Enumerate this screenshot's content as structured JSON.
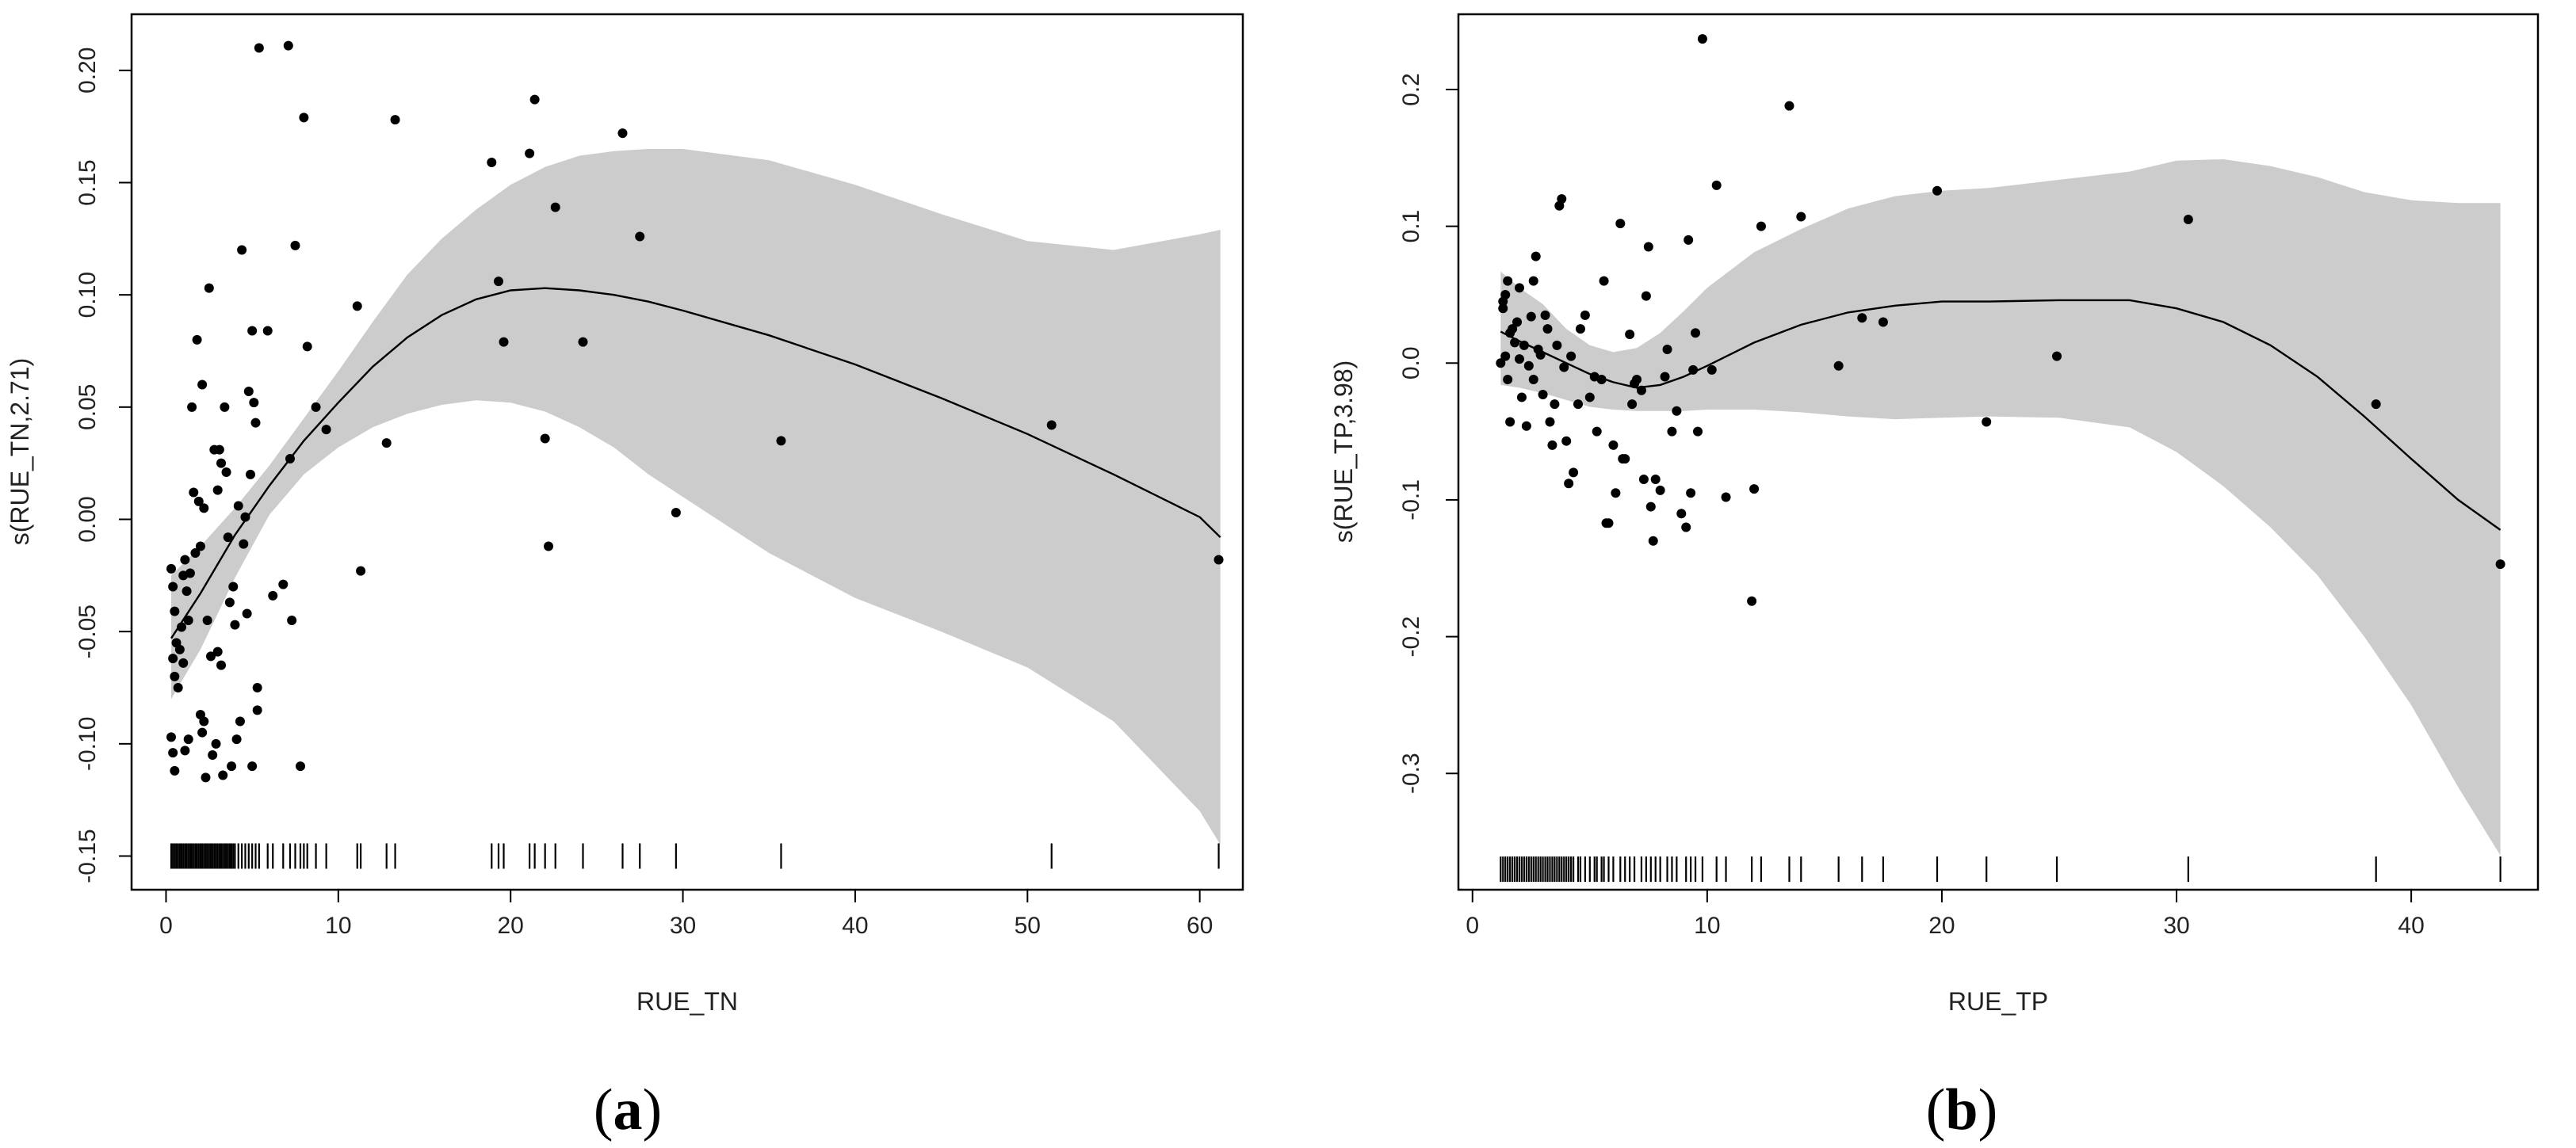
{
  "colors": {
    "band": "#cccccc",
    "line": "#000000",
    "points": "#000000",
    "frame": "#000000",
    "background": "#ffffff"
  },
  "chart_data": [
    {
      "panel_label": "(a)",
      "panel_letter": "a",
      "type": "scatter",
      "xlabel": "RUE_TN",
      "ylabel": "s(RUE_TN,2.71)",
      "xlim": [
        -2,
        62.5
      ],
      "ylim": [
        -0.165,
        0.225
      ],
      "xticks": [
        0,
        10,
        20,
        30,
        40,
        50,
        60
      ],
      "xtick_labels": [
        "0",
        "10",
        "20",
        "30",
        "40",
        "50",
        "60"
      ],
      "yticks": [
        -0.15,
        -0.1,
        -0.05,
        0.0,
        0.05,
        0.1,
        0.15,
        0.2
      ],
      "ytick_labels": [
        "-0.15",
        "-0.10",
        "-0.05",
        "0.00",
        "0.05",
        "0.10",
        "0.15",
        "0.20"
      ],
      "rug_y": -0.15,
      "smooth": {
        "x": [
          0.3,
          2,
          4,
          6,
          8,
          10,
          12,
          14,
          16,
          18,
          20,
          22,
          24,
          26,
          28,
          30,
          35,
          40,
          45,
          50,
          55,
          60,
          61.2
        ],
        "fit": [
          -0.053,
          -0.033,
          -0.007,
          0.015,
          0.035,
          0.052,
          0.068,
          0.081,
          0.091,
          0.098,
          0.102,
          0.103,
          0.102,
          0.1,
          0.097,
          0.093,
          0.082,
          0.069,
          0.054,
          0.038,
          0.02,
          0.001,
          -0.008
        ],
        "upper": [
          -0.025,
          -0.012,
          0.005,
          0.024,
          0.045,
          0.066,
          0.088,
          0.109,
          0.125,
          0.138,
          0.149,
          0.157,
          0.162,
          0.164,
          0.165,
          0.165,
          0.16,
          0.149,
          0.136,
          0.124,
          0.12,
          0.127,
          0.129
        ],
        "lower": [
          -0.08,
          -0.058,
          -0.026,
          0.002,
          0.02,
          0.032,
          0.041,
          0.047,
          0.051,
          0.053,
          0.052,
          0.048,
          0.041,
          0.032,
          0.02,
          0.01,
          -0.015,
          -0.035,
          -0.05,
          -0.066,
          -0.09,
          -0.13,
          -0.145
        ]
      },
      "points": [
        [
          0.3,
          -0.022
        ],
        [
          0.4,
          -0.03
        ],
        [
          0.5,
          -0.041
        ],
        [
          0.6,
          -0.055
        ],
        [
          0.4,
          -0.062
        ],
        [
          0.5,
          -0.07
        ],
        [
          0.7,
          -0.075
        ],
        [
          0.3,
          -0.097
        ],
        [
          0.4,
          -0.104
        ],
        [
          0.5,
          -0.112
        ],
        [
          0.8,
          -0.058
        ],
        [
          0.9,
          -0.048
        ],
        [
          1.0,
          -0.025
        ],
        [
          1.1,
          -0.018
        ],
        [
          1.2,
          -0.032
        ],
        [
          1.3,
          -0.045
        ],
        [
          1.0,
          -0.064
        ],
        [
          1.1,
          -0.103
        ],
        [
          1.3,
          -0.098
        ],
        [
          1.4,
          -0.024
        ],
        [
          1.5,
          0.05
        ],
        [
          1.6,
          0.012
        ],
        [
          1.7,
          -0.015
        ],
        [
          1.8,
          0.08
        ],
        [
          1.9,
          0.008
        ],
        [
          2.0,
          -0.012
        ],
        [
          2.0,
          -0.087
        ],
        [
          2.1,
          -0.095
        ],
        [
          2.1,
          0.06
        ],
        [
          2.2,
          0.005
        ],
        [
          2.2,
          -0.09
        ],
        [
          2.3,
          -0.115
        ],
        [
          2.4,
          -0.045
        ],
        [
          2.5,
          0.103
        ],
        [
          2.6,
          -0.061
        ],
        [
          2.7,
          -0.105
        ],
        [
          2.8,
          0.031
        ],
        [
          2.9,
          -0.1
        ],
        [
          3.0,
          0.013
        ],
        [
          3.0,
          -0.059
        ],
        [
          3.1,
          0.031
        ],
        [
          3.2,
          0.025
        ],
        [
          3.2,
          -0.065
        ],
        [
          3.3,
          -0.114
        ],
        [
          3.4,
          0.05
        ],
        [
          3.5,
          0.021
        ],
        [
          3.6,
          -0.008
        ],
        [
          3.7,
          -0.037
        ],
        [
          3.8,
          -0.11
        ],
        [
          3.9,
          -0.03
        ],
        [
          4.0,
          -0.047
        ],
        [
          4.1,
          -0.098
        ],
        [
          4.2,
          0.006
        ],
        [
          4.3,
          -0.09
        ],
        [
          4.4,
          0.12
        ],
        [
          4.5,
          -0.011
        ],
        [
          4.6,
          0.001
        ],
        [
          4.7,
          -0.042
        ],
        [
          4.8,
          0.057
        ],
        [
          4.9,
          0.02
        ],
        [
          5.0,
          0.084
        ],
        [
          5.0,
          -0.11
        ],
        [
          5.1,
          0.052
        ],
        [
          5.2,
          0.043
        ],
        [
          5.3,
          -0.075
        ],
        [
          5.3,
          -0.085
        ],
        [
          5.4,
          0.21
        ],
        [
          5.9,
          0.084
        ],
        [
          6.2,
          -0.034
        ],
        [
          6.8,
          -0.029
        ],
        [
          7.1,
          0.211
        ],
        [
          7.2,
          0.027
        ],
        [
          7.3,
          -0.045
        ],
        [
          7.5,
          0.122
        ],
        [
          7.8,
          -0.11
        ],
        [
          8.0,
          0.179
        ],
        [
          8.2,
          0.077
        ],
        [
          8.7,
          0.05
        ],
        [
          9.3,
          0.04
        ],
        [
          11.1,
          0.095
        ],
        [
          11.3,
          -0.023
        ],
        [
          12.8,
          0.034
        ],
        [
          13.3,
          0.178
        ],
        [
          18.9,
          0.159
        ],
        [
          19.3,
          0.106
        ],
        [
          19.6,
          0.079
        ],
        [
          21.1,
          0.163
        ],
        [
          21.4,
          0.187
        ],
        [
          22.0,
          0.036
        ],
        [
          22.2,
          -0.012
        ],
        [
          22.6,
          0.139
        ],
        [
          24.2,
          0.079
        ],
        [
          26.5,
          0.172
        ],
        [
          27.5,
          0.126
        ],
        [
          29.6,
          0.003
        ],
        [
          35.7,
          0.035
        ],
        [
          51.4,
          0.042
        ],
        [
          61.1,
          -0.018
        ]
      ],
      "rug": [
        0.3,
        0.4,
        0.5,
        0.6,
        0.7,
        0.8,
        0.9,
        1.0,
        1.1,
        1.2,
        1.3,
        1.4,
        1.5,
        1.6,
        1.7,
        1.8,
        1.9,
        2.0,
        2.1,
        2.2,
        2.3,
        2.4,
        2.5,
        2.6,
        2.7,
        2.8,
        2.9,
        3.0,
        3.1,
        3.2,
        3.3,
        3.4,
        3.5,
        3.6,
        3.7,
        3.8,
        3.9,
        4.0,
        4.2,
        4.4,
        4.6,
        4.8,
        5.0,
        5.2,
        5.4,
        5.9,
        6.2,
        6.8,
        7.2,
        7.5,
        7.8,
        8.0,
        8.2,
        8.7,
        9.3,
        11.1,
        11.3,
        12.8,
        13.3,
        18.9,
        19.3,
        19.6,
        21.1,
        21.4,
        22.0,
        22.6,
        24.2,
        26.5,
        27.5,
        29.6,
        35.7,
        51.4,
        61.1
      ]
    },
    {
      "panel_label": "(b)",
      "panel_letter": "b",
      "type": "scatter",
      "xlabel": "RUE_TP",
      "ylabel": "s(RUE_TP,3.98)",
      "xlim": [
        -0.6,
        45.4
      ],
      "ylim": [
        -0.385,
        0.255
      ],
      "xticks": [
        0,
        10,
        20,
        30,
        40
      ],
      "xtick_labels": [
        "0",
        "10",
        "20",
        "30",
        "40"
      ],
      "yticks": [
        -0.3,
        -0.2,
        -0.1,
        0.0,
        0.1,
        0.2
      ],
      "ytick_labels": [
        "-0.3",
        "-0.2",
        "-0.1",
        "0.0",
        "0.1",
        "0.2"
      ],
      "rug_y": -0.37,
      "smooth": {
        "x": [
          1.2,
          2,
          3,
          4,
          5,
          6,
          7,
          8,
          9,
          10,
          12,
          14,
          16,
          18,
          20,
          22,
          25,
          28,
          30,
          32,
          34,
          36,
          38,
          40,
          42,
          43.8
        ],
        "fit": [
          0.023,
          0.016,
          0.008,
          0.0,
          -0.008,
          -0.014,
          -0.018,
          -0.016,
          -0.01,
          -0.002,
          0.015,
          0.028,
          0.037,
          0.042,
          0.045,
          0.045,
          0.046,
          0.046,
          0.04,
          0.03,
          0.013,
          -0.01,
          -0.039,
          -0.07,
          -0.1,
          -0.122
        ],
        "upper": [
          0.067,
          0.055,
          0.043,
          0.025,
          0.013,
          0.008,
          0.011,
          0.022,
          0.038,
          0.055,
          0.081,
          0.098,
          0.113,
          0.122,
          0.126,
          0.128,
          0.134,
          0.14,
          0.148,
          0.149,
          0.144,
          0.136,
          0.125,
          0.119,
          0.117,
          0.117
        ],
        "lower": [
          -0.016,
          -0.018,
          -0.022,
          -0.027,
          -0.032,
          -0.034,
          -0.035,
          -0.035,
          -0.035,
          -0.034,
          -0.034,
          -0.036,
          -0.039,
          -0.041,
          -0.04,
          -0.039,
          -0.04,
          -0.047,
          -0.065,
          -0.09,
          -0.12,
          -0.155,
          -0.2,
          -0.25,
          -0.31,
          -0.36
        ]
      },
      "points": [
        [
          1.2,
          0.0
        ],
        [
          1.3,
          0.045
        ],
        [
          1.3,
          0.04
        ],
        [
          1.4,
          0.05
        ],
        [
          1.4,
          0.005
        ],
        [
          1.5,
          0.06
        ],
        [
          1.5,
          -0.012
        ],
        [
          1.6,
          -0.043
        ],
        [
          1.6,
          0.022
        ],
        [
          1.7,
          0.025
        ],
        [
          1.8,
          0.015
        ],
        [
          1.9,
          0.03
        ],
        [
          2.0,
          0.003
        ],
        [
          2.0,
          0.055
        ],
        [
          2.1,
          -0.025
        ],
        [
          2.2,
          0.013
        ],
        [
          2.3,
          -0.046
        ],
        [
          2.4,
          -0.002
        ],
        [
          2.5,
          0.034
        ],
        [
          2.6,
          0.06
        ],
        [
          2.6,
          -0.012
        ],
        [
          2.7,
          0.078
        ],
        [
          2.8,
          0.01
        ],
        [
          2.9,
          0.006
        ],
        [
          3.0,
          -0.023
        ],
        [
          3.1,
          0.035
        ],
        [
          3.2,
          0.025
        ],
        [
          3.3,
          -0.043
        ],
        [
          3.4,
          -0.06
        ],
        [
          3.5,
          -0.03
        ],
        [
          3.6,
          0.013
        ],
        [
          3.7,
          0.115
        ],
        [
          3.8,
          0.12
        ],
        [
          3.9,
          -0.003
        ],
        [
          4.0,
          -0.057
        ],
        [
          4.1,
          -0.088
        ],
        [
          4.2,
          0.005
        ],
        [
          4.3,
          -0.08
        ],
        [
          4.5,
          -0.03
        ],
        [
          4.6,
          0.025
        ],
        [
          4.8,
          0.035
        ],
        [
          5.0,
          -0.025
        ],
        [
          5.2,
          -0.01
        ],
        [
          5.3,
          -0.05
        ],
        [
          5.5,
          -0.012
        ],
        [
          5.6,
          0.06
        ],
        [
          5.7,
          -0.117
        ],
        [
          5.8,
          -0.117
        ],
        [
          6.0,
          -0.06
        ],
        [
          6.1,
          -0.095
        ],
        [
          6.3,
          0.102
        ],
        [
          6.4,
          -0.07
        ],
        [
          6.5,
          -0.07
        ],
        [
          6.7,
          0.021
        ],
        [
          6.8,
          -0.03
        ],
        [
          6.9,
          -0.015
        ],
        [
          7.0,
          -0.012
        ],
        [
          7.2,
          -0.02
        ],
        [
          7.3,
          -0.085
        ],
        [
          7.4,
          0.049
        ],
        [
          7.5,
          0.085
        ],
        [
          7.6,
          -0.105
        ],
        [
          7.7,
          -0.13
        ],
        [
          7.8,
          -0.085
        ],
        [
          8.0,
          -0.093
        ],
        [
          8.2,
          -0.01
        ],
        [
          8.3,
          0.01
        ],
        [
          8.5,
          -0.05
        ],
        [
          8.7,
          -0.035
        ],
        [
          8.9,
          -0.11
        ],
        [
          9.1,
          -0.12
        ],
        [
          9.2,
          0.09
        ],
        [
          9.3,
          -0.095
        ],
        [
          9.4,
          -0.005
        ],
        [
          9.5,
          0.022
        ],
        [
          9.6,
          -0.05
        ],
        [
          9.8,
          0.237
        ],
        [
          10.2,
          -0.005
        ],
        [
          10.4,
          0.13
        ],
        [
          10.8,
          -0.098
        ],
        [
          11.9,
          -0.174
        ],
        [
          12.0,
          -0.092
        ],
        [
          12.3,
          0.1
        ],
        [
          13.5,
          0.188
        ],
        [
          14.0,
          0.107
        ],
        [
          15.6,
          -0.002
        ],
        [
          16.6,
          0.033
        ],
        [
          17.5,
          0.03
        ],
        [
          19.8,
          0.126
        ],
        [
          21.9,
          -0.043
        ],
        [
          24.9,
          0.005
        ],
        [
          30.5,
          0.105
        ],
        [
          38.5,
          -0.03
        ],
        [
          43.8,
          -0.147
        ]
      ],
      "rug": [
        1.2,
        1.3,
        1.4,
        1.5,
        1.6,
        1.7,
        1.8,
        1.9,
        2.0,
        2.1,
        2.2,
        2.3,
        2.4,
        2.5,
        2.6,
        2.7,
        2.8,
        2.9,
        3.0,
        3.1,
        3.2,
        3.3,
        3.4,
        3.5,
        3.6,
        3.7,
        3.8,
        3.9,
        4.0,
        4.1,
        4.2,
        4.3,
        4.5,
        4.6,
        4.8,
        5.0,
        5.2,
        5.3,
        5.5,
        5.6,
        5.8,
        6.0,
        6.3,
        6.5,
        6.7,
        6.9,
        7.2,
        7.4,
        7.6,
        7.8,
        8.0,
        8.3,
        8.5,
        8.7,
        9.1,
        9.3,
        9.5,
        9.8,
        10.4,
        10.8,
        11.9,
        12.3,
        13.5,
        14.0,
        15.6,
        16.6,
        17.5,
        19.8,
        21.9,
        24.9,
        30.5,
        38.5,
        43.8
      ]
    }
  ]
}
